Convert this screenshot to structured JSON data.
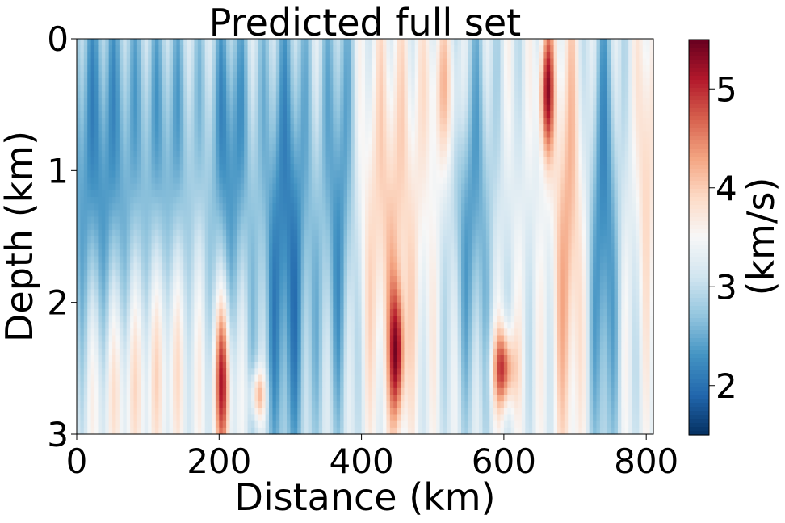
{
  "chart_data": {
    "type": "heatmap",
    "title": "Predicted full set",
    "xlabel": "Distance (km)",
    "ylabel": "Depth (km)",
    "xlim": [
      0,
      810
    ],
    "ylim": [
      3,
      0
    ],
    "x_ticks": [
      0,
      200,
      400,
      600,
      800
    ],
    "y_ticks": [
      0,
      1,
      2,
      3
    ],
    "colorbar": {
      "label": "(km/s)",
      "colormap": "RdBu_r",
      "range": [
        1.5,
        5.5
      ],
      "ticks": [
        2,
        3,
        4,
        5
      ],
      "colors": [
        "#053061",
        "#2166ac",
        "#4393c3",
        "#92c5de",
        "#d1e5f0",
        "#f7f7f7",
        "#fddbc7",
        "#f4a582",
        "#d6604d",
        "#b2182b",
        "#67001f"
      ]
    },
    "features": [
      {
        "x": 30,
        "depth": 0.9,
        "width": 70,
        "spread": 1.6,
        "value": 2.3
      },
      {
        "x": 60,
        "depth": 2.6,
        "width": 50,
        "spread": 0.8,
        "value": 3.8
      },
      {
        "x": 135,
        "depth": 0.9,
        "width": 45,
        "spread": 1.4,
        "value": 2.6
      },
      {
        "x": 130,
        "depth": 2.3,
        "width": 40,
        "spread": 0.9,
        "value": 3.8
      },
      {
        "x": 205,
        "depth": 2.6,
        "width": 12,
        "spread": 0.6,
        "value": 5.0
      },
      {
        "x": 215,
        "depth": 0.8,
        "width": 30,
        "spread": 1.3,
        "value": 2.3
      },
      {
        "x": 255,
        "depth": 2.7,
        "width": 10,
        "spread": 0.2,
        "value": 4.4
      },
      {
        "x": 295,
        "depth": 1.6,
        "width": 40,
        "spread": 2.0,
        "value": 2.1
      },
      {
        "x": 370,
        "depth": 1.2,
        "width": 25,
        "spread": 1.8,
        "value": 2.3
      },
      {
        "x": 440,
        "depth": 1.4,
        "width": 50,
        "spread": 1.5,
        "value": 4.0
      },
      {
        "x": 450,
        "depth": 2.4,
        "width": 10,
        "spread": 0.5,
        "value": 5.0
      },
      {
        "x": 520,
        "depth": 0.4,
        "width": 25,
        "spread": 0.6,
        "value": 4.0
      },
      {
        "x": 555,
        "depth": 1.2,
        "width": 30,
        "spread": 1.6,
        "value": 2.4
      },
      {
        "x": 600,
        "depth": 2.5,
        "width": 15,
        "spread": 0.3,
        "value": 5.0
      },
      {
        "x": 660,
        "depth": 0.4,
        "width": 10,
        "spread": 0.5,
        "value": 5.1
      },
      {
        "x": 690,
        "depth": 1.5,
        "width": 20,
        "spread": 1.8,
        "value": 4.2
      },
      {
        "x": 740,
        "depth": 1.5,
        "width": 20,
        "spread": 2.0,
        "value": 2.2
      },
      {
        "x": 800,
        "depth": 0.8,
        "width": 12,
        "spread": 1.2,
        "value": 4.0
      }
    ]
  }
}
